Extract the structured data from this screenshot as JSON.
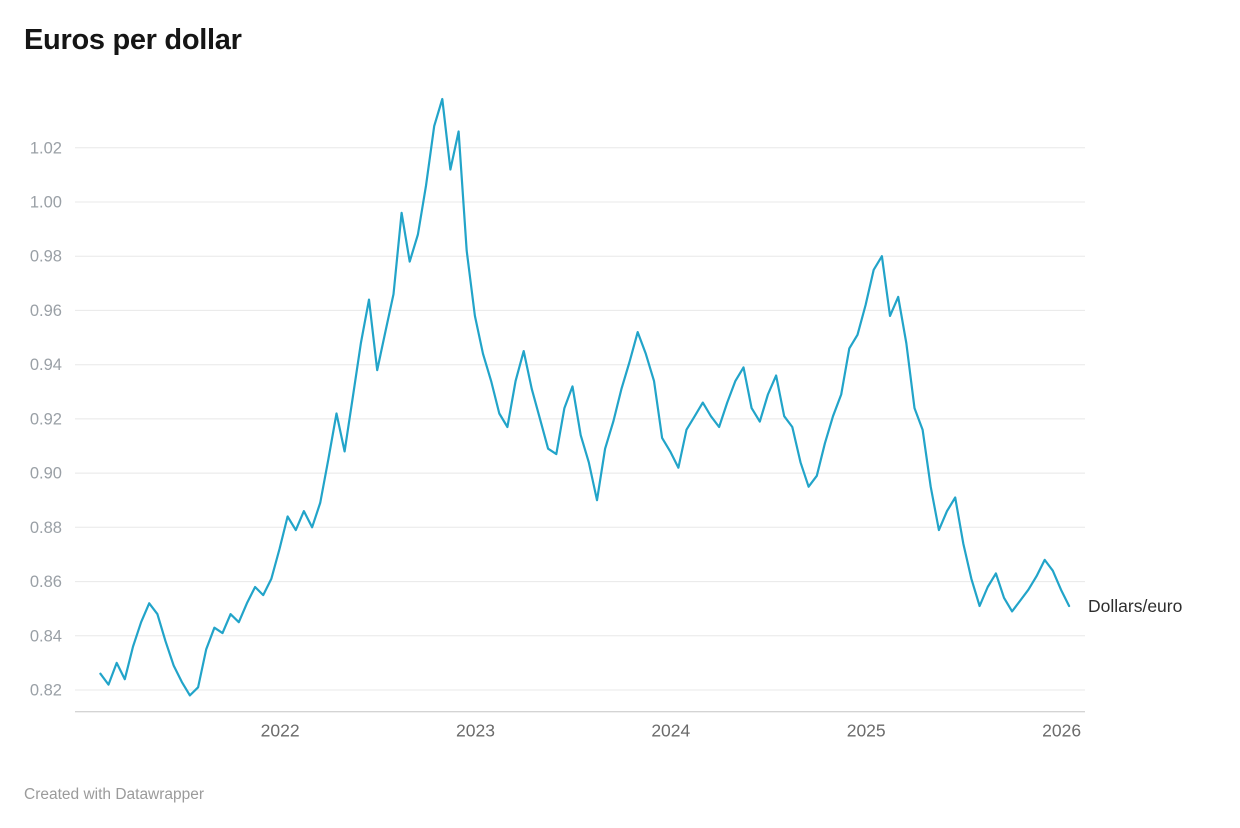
{
  "title": "Euros per dollar",
  "series_label": "Dollars/euro",
  "footer": "Created with Datawrapper",
  "colors": {
    "line": "#22a4c9",
    "grid": "#e8e8e8",
    "axis": "#c6c6c6",
    "y_tick_label": "#9aa0a6",
    "x_tick_label": "#6b6b6b",
    "title": "#151515",
    "series_label_color": "#2e2e2e",
    "footer_color": "#9b9b9b"
  },
  "chart_data": {
    "type": "line",
    "title": "Euros per dollar",
    "xlabel": "",
    "ylabel": "",
    "legend_position": "end-of-line",
    "grid": "horizontal",
    "y_ticks": [
      0.82,
      0.84,
      0.86,
      0.88,
      0.9,
      0.92,
      0.94,
      0.96,
      0.98,
      1.0,
      1.02
    ],
    "x_ticks": [
      2022,
      2023,
      2024,
      2025,
      2026
    ],
    "ylim": [
      0.812,
      1.045
    ],
    "xlim": [
      2020.95,
      2026.12
    ],
    "series": [
      {
        "name": "Dollars/euro",
        "x_start": 2021.08,
        "x_step": 0.04167,
        "values": [
          0.826,
          0.822,
          0.83,
          0.824,
          0.836,
          0.845,
          0.852,
          0.848,
          0.838,
          0.829,
          0.823,
          0.818,
          0.821,
          0.835,
          0.843,
          0.841,
          0.848,
          0.845,
          0.852,
          0.858,
          0.855,
          0.861,
          0.872,
          0.884,
          0.879,
          0.886,
          0.88,
          0.889,
          0.905,
          0.922,
          0.908,
          0.928,
          0.948,
          0.964,
          0.938,
          0.952,
          0.966,
          0.996,
          0.978,
          0.988,
          1.006,
          1.028,
          1.038,
          1.012,
          1.026,
          0.982,
          0.958,
          0.944,
          0.934,
          0.922,
          0.917,
          0.934,
          0.945,
          0.931,
          0.92,
          0.909,
          0.907,
          0.924,
          0.932,
          0.914,
          0.904,
          0.89,
          0.909,
          0.919,
          0.931,
          0.941,
          0.952,
          0.944,
          0.934,
          0.913,
          0.908,
          0.902,
          0.916,
          0.921,
          0.926,
          0.921,
          0.917,
          0.926,
          0.934,
          0.939,
          0.924,
          0.919,
          0.929,
          0.936,
          0.921,
          0.917,
          0.904,
          0.895,
          0.899,
          0.911,
          0.921,
          0.929,
          0.946,
          0.951,
          0.962,
          0.975,
          0.98,
          0.958,
          0.965,
          0.948,
          0.924,
          0.916,
          0.895,
          0.879,
          0.886,
          0.891,
          0.874,
          0.861,
          0.851,
          0.858,
          0.863,
          0.854,
          0.849,
          0.853,
          0.857,
          0.862,
          0.868,
          0.864,
          0.857,
          0.851
        ]
      }
    ]
  }
}
